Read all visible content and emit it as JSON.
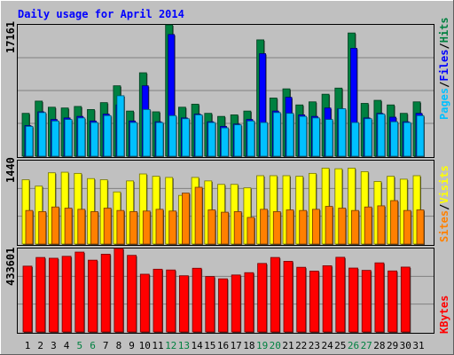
{
  "colors": {
    "background": "#c0c0c0",
    "plot_bg": "#c0c0c0",
    "title": "#0000ff",
    "hits": "#008040",
    "files": "#0000ff",
    "pages": "#00c0ff",
    "visits": "#ffff00",
    "sites": "#ff8000",
    "kbytes": "#ff0000",
    "weekend_label": "#008040",
    "weekday_label": "#000000"
  },
  "chart_data": [
    {
      "type": "bar",
      "title": "Daily usage for April 2014",
      "categories": [
        "1",
        "2",
        "3",
        "4",
        "5",
        "6",
        "7",
        "8",
        "9",
        "10",
        "11",
        "12",
        "13",
        "14",
        "15",
        "16",
        "17",
        "18",
        "19",
        "20",
        "21",
        "22",
        "23",
        "24",
        "25",
        "26",
        "27",
        "28",
        "29",
        "30",
        "31"
      ],
      "weekend_days": [
        "5",
        "6",
        "12",
        "13",
        "19",
        "20",
        "26",
        "27"
      ],
      "ymax_label": "17161",
      "ylim": [
        0,
        17161
      ],
      "grid": true,
      "legend": "right",
      "series": [
        {
          "name": "Hits",
          "color": "#008040",
          "values": [
            5600,
            7200,
            6400,
            6300,
            6500,
            6100,
            7000,
            9200,
            5900,
            10900,
            5800,
            17161,
            6400,
            6800,
            5600,
            5200,
            5400,
            5900,
            15200,
            7600,
            8800,
            6700,
            7100,
            8100,
            8900,
            16100,
            6900,
            7300,
            6700,
            5600,
            7100
          ]
        },
        {
          "name": "Files",
          "color": "#0000ff",
          "values": [
            4000,
            5800,
            4800,
            5000,
            5200,
            4600,
            5500,
            6700,
            4600,
            9200,
            4500,
            15900,
            5000,
            5500,
            4500,
            3900,
            4200,
            4800,
            13400,
            5900,
            7700,
            5400,
            5200,
            6300,
            6200,
            14100,
            5000,
            5600,
            5100,
            4500,
            5600
          ]
        },
        {
          "name": "Pages",
          "color": "#00c0ff",
          "values": [
            3900,
            5700,
            4600,
            4800,
            5000,
            4400,
            5300,
            7900,
            4400,
            6100,
            4400,
            5300,
            4900,
            5400,
            4400,
            3700,
            4100,
            4600,
            4400,
            5700,
            5600,
            5200,
            5000,
            4800,
            6200,
            4400,
            4900,
            5500,
            4500,
            4400,
            5300
          ]
        }
      ]
    },
    {
      "type": "bar",
      "categories": [
        "1",
        "2",
        "3",
        "4",
        "5",
        "6",
        "7",
        "8",
        "9",
        "10",
        "11",
        "12",
        "13",
        "14",
        "15",
        "16",
        "17",
        "18",
        "19",
        "20",
        "21",
        "22",
        "23",
        "24",
        "25",
        "26",
        "27",
        "28",
        "29",
        "30",
        "31"
      ],
      "ymax_label": "1440",
      "ylim": [
        0,
        1440
      ],
      "grid": true,
      "legend": "right",
      "series": [
        {
          "name": "Visits",
          "color": "#ffff00",
          "values": [
            1110,
            1000,
            1230,
            1240,
            1220,
            1130,
            1110,
            900,
            1090,
            1210,
            1170,
            1150,
            840,
            1150,
            1090,
            1030,
            1030,
            970,
            1180,
            1180,
            1180,
            1170,
            1220,
            1310,
            1300,
            1310,
            1250,
            1080,
            1170,
            1120,
            1180
          ]
        },
        {
          "name": "Sites",
          "color": "#ff8000",
          "values": [
            580,
            560,
            640,
            620,
            600,
            560,
            620,
            580,
            560,
            570,
            600,
            570,
            880,
            980,
            590,
            550,
            560,
            460,
            600,
            560,
            590,
            580,
            600,
            650,
            620,
            580,
            640,
            660,
            750,
            580,
            590
          ]
        }
      ]
    },
    {
      "type": "bar",
      "categories": [
        "1",
        "2",
        "3",
        "4",
        "5",
        "6",
        "7",
        "8",
        "9",
        "10",
        "11",
        "12",
        "13",
        "14",
        "15",
        "16",
        "17",
        "18",
        "19",
        "20",
        "21",
        "22",
        "23",
        "24",
        "25",
        "26",
        "27",
        "28",
        "29",
        "30",
        "31"
      ],
      "ymax_label": "433601",
      "ylim": [
        0,
        433601
      ],
      "grid": true,
      "legend": "right",
      "series": [
        {
          "name": "KBytes",
          "color": "#ff0000",
          "values": [
            342000,
            387000,
            383000,
            393000,
            415000,
            373000,
            404000,
            433601,
            398000,
            300000,
            326000,
            322000,
            292000,
            331000,
            288000,
            276000,
            296000,
            308000,
            356000,
            387000,
            367000,
            336000,
            316000,
            344000,
            388000,
            332000,
            320000,
            359000,
            317000,
            337000,
            0
          ]
        }
      ]
    }
  ],
  "legend_labels": {
    "top": {
      "pages": "Pages",
      "files": "Files",
      "hits": "Hits",
      "sep": "/"
    },
    "mid": {
      "sites": "Sites",
      "visits": "Visits",
      "sep": "/"
    },
    "bot": {
      "kbytes": "KBytes"
    }
  }
}
